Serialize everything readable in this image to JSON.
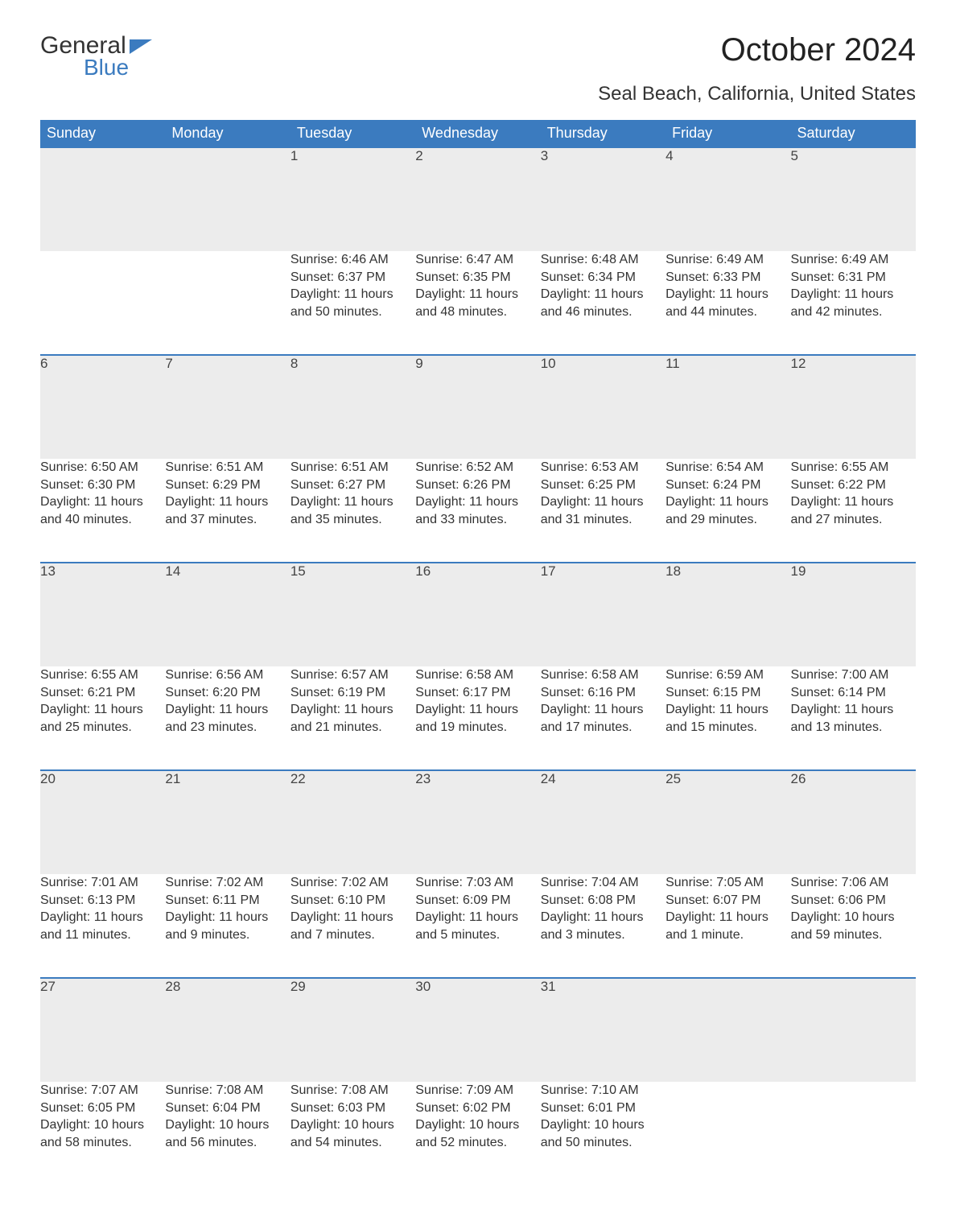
{
  "logo": {
    "part1": "General",
    "part2": "Blue"
  },
  "title": "October 2024",
  "location": "Seal Beach, California, United States",
  "colors": {
    "header_bg": "#3b7bbf",
    "header_text": "#ffffff",
    "daynum_bg": "#ececec",
    "border": "#3b7bbf"
  },
  "daysOfWeek": [
    "Sunday",
    "Monday",
    "Tuesday",
    "Wednesday",
    "Thursday",
    "Friday",
    "Saturday"
  ],
  "labels": {
    "sunrise": "Sunrise:",
    "sunset": "Sunset:",
    "daylight": "Daylight:"
  },
  "weeks": [
    [
      null,
      null,
      {
        "n": "1",
        "sr": "6:46 AM",
        "ss": "6:37 PM",
        "dl": "11 hours and 50 minutes."
      },
      {
        "n": "2",
        "sr": "6:47 AM",
        "ss": "6:35 PM",
        "dl": "11 hours and 48 minutes."
      },
      {
        "n": "3",
        "sr": "6:48 AM",
        "ss": "6:34 PM",
        "dl": "11 hours and 46 minutes."
      },
      {
        "n": "4",
        "sr": "6:49 AM",
        "ss": "6:33 PM",
        "dl": "11 hours and 44 minutes."
      },
      {
        "n": "5",
        "sr": "6:49 AM",
        "ss": "6:31 PM",
        "dl": "11 hours and 42 minutes."
      }
    ],
    [
      {
        "n": "6",
        "sr": "6:50 AM",
        "ss": "6:30 PM",
        "dl": "11 hours and 40 minutes."
      },
      {
        "n": "7",
        "sr": "6:51 AM",
        "ss": "6:29 PM",
        "dl": "11 hours and 37 minutes."
      },
      {
        "n": "8",
        "sr": "6:51 AM",
        "ss": "6:27 PM",
        "dl": "11 hours and 35 minutes."
      },
      {
        "n": "9",
        "sr": "6:52 AM",
        "ss": "6:26 PM",
        "dl": "11 hours and 33 minutes."
      },
      {
        "n": "10",
        "sr": "6:53 AM",
        "ss": "6:25 PM",
        "dl": "11 hours and 31 minutes."
      },
      {
        "n": "11",
        "sr": "6:54 AM",
        "ss": "6:24 PM",
        "dl": "11 hours and 29 minutes."
      },
      {
        "n": "12",
        "sr": "6:55 AM",
        "ss": "6:22 PM",
        "dl": "11 hours and 27 minutes."
      }
    ],
    [
      {
        "n": "13",
        "sr": "6:55 AM",
        "ss": "6:21 PM",
        "dl": "11 hours and 25 minutes."
      },
      {
        "n": "14",
        "sr": "6:56 AM",
        "ss": "6:20 PM",
        "dl": "11 hours and 23 minutes."
      },
      {
        "n": "15",
        "sr": "6:57 AM",
        "ss": "6:19 PM",
        "dl": "11 hours and 21 minutes."
      },
      {
        "n": "16",
        "sr": "6:58 AM",
        "ss": "6:17 PM",
        "dl": "11 hours and 19 minutes."
      },
      {
        "n": "17",
        "sr": "6:58 AM",
        "ss": "6:16 PM",
        "dl": "11 hours and 17 minutes."
      },
      {
        "n": "18",
        "sr": "6:59 AM",
        "ss": "6:15 PM",
        "dl": "11 hours and 15 minutes."
      },
      {
        "n": "19",
        "sr": "7:00 AM",
        "ss": "6:14 PM",
        "dl": "11 hours and 13 minutes."
      }
    ],
    [
      {
        "n": "20",
        "sr": "7:01 AM",
        "ss": "6:13 PM",
        "dl": "11 hours and 11 minutes."
      },
      {
        "n": "21",
        "sr": "7:02 AM",
        "ss": "6:11 PM",
        "dl": "11 hours and 9 minutes."
      },
      {
        "n": "22",
        "sr": "7:02 AM",
        "ss": "6:10 PM",
        "dl": "11 hours and 7 minutes."
      },
      {
        "n": "23",
        "sr": "7:03 AM",
        "ss": "6:09 PM",
        "dl": "11 hours and 5 minutes."
      },
      {
        "n": "24",
        "sr": "7:04 AM",
        "ss": "6:08 PM",
        "dl": "11 hours and 3 minutes."
      },
      {
        "n": "25",
        "sr": "7:05 AM",
        "ss": "6:07 PM",
        "dl": "11 hours and 1 minute."
      },
      {
        "n": "26",
        "sr": "7:06 AM",
        "ss": "6:06 PM",
        "dl": "10 hours and 59 minutes."
      }
    ],
    [
      {
        "n": "27",
        "sr": "7:07 AM",
        "ss": "6:05 PM",
        "dl": "10 hours and 58 minutes."
      },
      {
        "n": "28",
        "sr": "7:08 AM",
        "ss": "6:04 PM",
        "dl": "10 hours and 56 minutes."
      },
      {
        "n": "29",
        "sr": "7:08 AM",
        "ss": "6:03 PM",
        "dl": "10 hours and 54 minutes."
      },
      {
        "n": "30",
        "sr": "7:09 AM",
        "ss": "6:02 PM",
        "dl": "10 hours and 52 minutes."
      },
      {
        "n": "31",
        "sr": "7:10 AM",
        "ss": "6:01 PM",
        "dl": "10 hours and 50 minutes."
      },
      null,
      null
    ]
  ]
}
